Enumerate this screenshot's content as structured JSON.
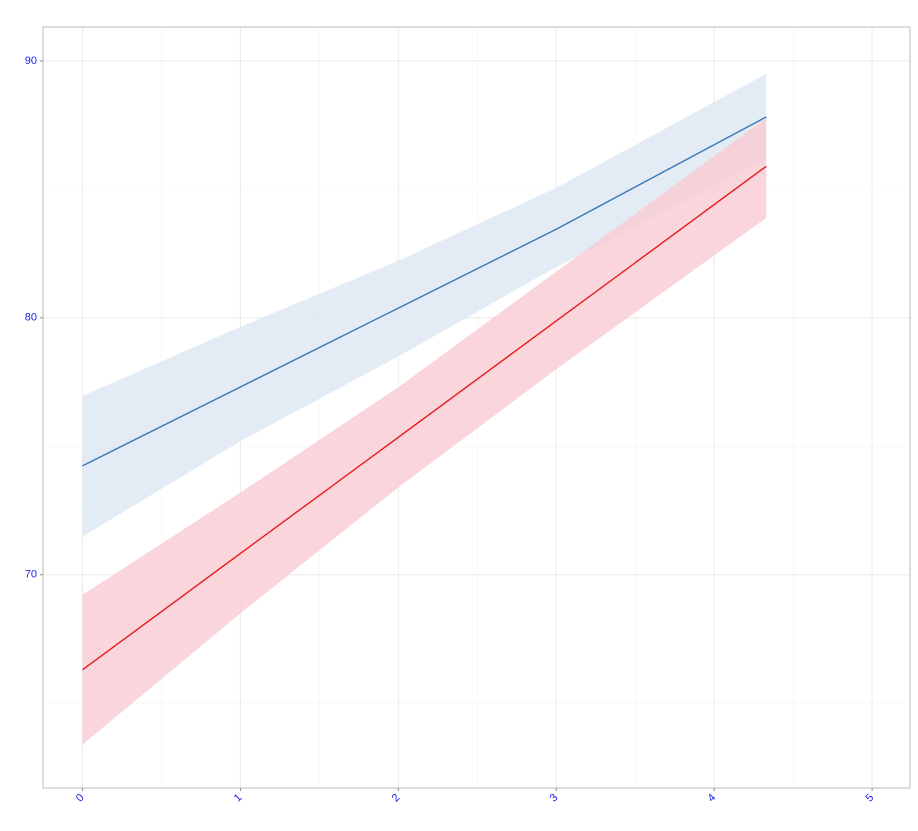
{
  "chart_data": {
    "type": "line",
    "xlim": [
      -0.25,
      5.24
    ],
    "ylim": [
      61.7,
      91.32
    ],
    "xticks": [
      0,
      1,
      2,
      3,
      4,
      5
    ],
    "yticks": [
      70,
      80,
      90
    ],
    "x_minor_grid": [
      0.5,
      1.5,
      2.5,
      3.5,
      4.5
    ],
    "y_minor_grid": [
      65,
      75,
      85
    ],
    "grid": true,
    "series": [
      {
        "color": "#3a78b8",
        "band_color": "#dce6f1",
        "x": [
          0,
          1,
          2,
          3,
          4.33
        ],
        "values": [
          74.24,
          77.31,
          80.38,
          83.45,
          87.82
        ],
        "lower": [
          71.48,
          75.2,
          78.5,
          81.98,
          86.15
        ],
        "upper": [
          76.96,
          79.65,
          82.22,
          85.06,
          89.5
        ]
      },
      {
        "color": "#e41a1c",
        "band_color": "#f9ccd3",
        "x": [
          0,
          1,
          2,
          3,
          4.33
        ],
        "values": [
          66.3,
          70.83,
          75.35,
          79.88,
          85.9
        ],
        "lower": [
          63.39,
          68.5,
          73.4,
          78.0,
          83.89
        ],
        "upper": [
          69.22,
          73.2,
          77.3,
          81.8,
          87.78
        ]
      }
    ]
  }
}
